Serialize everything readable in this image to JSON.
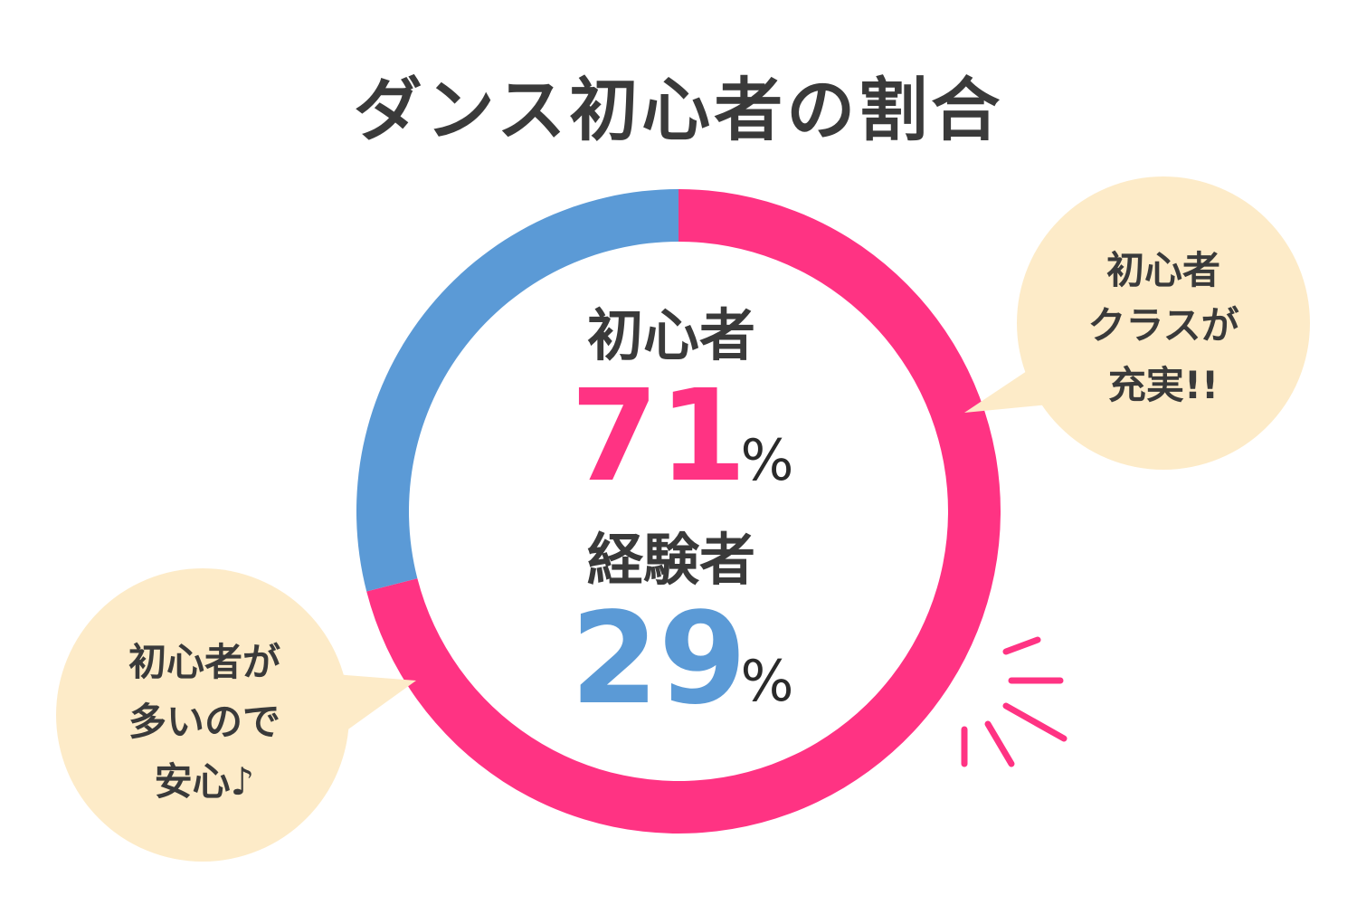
{
  "chart_data": {
    "type": "pie",
    "title": "ダンス初心者の割合",
    "categories": [
      "初心者",
      "経験者"
    ],
    "values": [
      71,
      29
    ],
    "value_labels": [
      "71",
      "29"
    ],
    "unit": "%",
    "colors": [
      "#ff3383",
      "#5b9ad6"
    ],
    "donut": true,
    "annotations": [
      {
        "lines": [
          "初心者",
          "クラスが",
          "充実!!"
        ],
        "position": "right"
      },
      {
        "lines": [
          "初心者が",
          "多いので",
          "安心♪"
        ],
        "position": "bottom-left"
      }
    ]
  },
  "colors": {
    "bubble_fill": "#fdebc8",
    "accent_lines": "#ff3383",
    "text": "#3a3a3a"
  }
}
